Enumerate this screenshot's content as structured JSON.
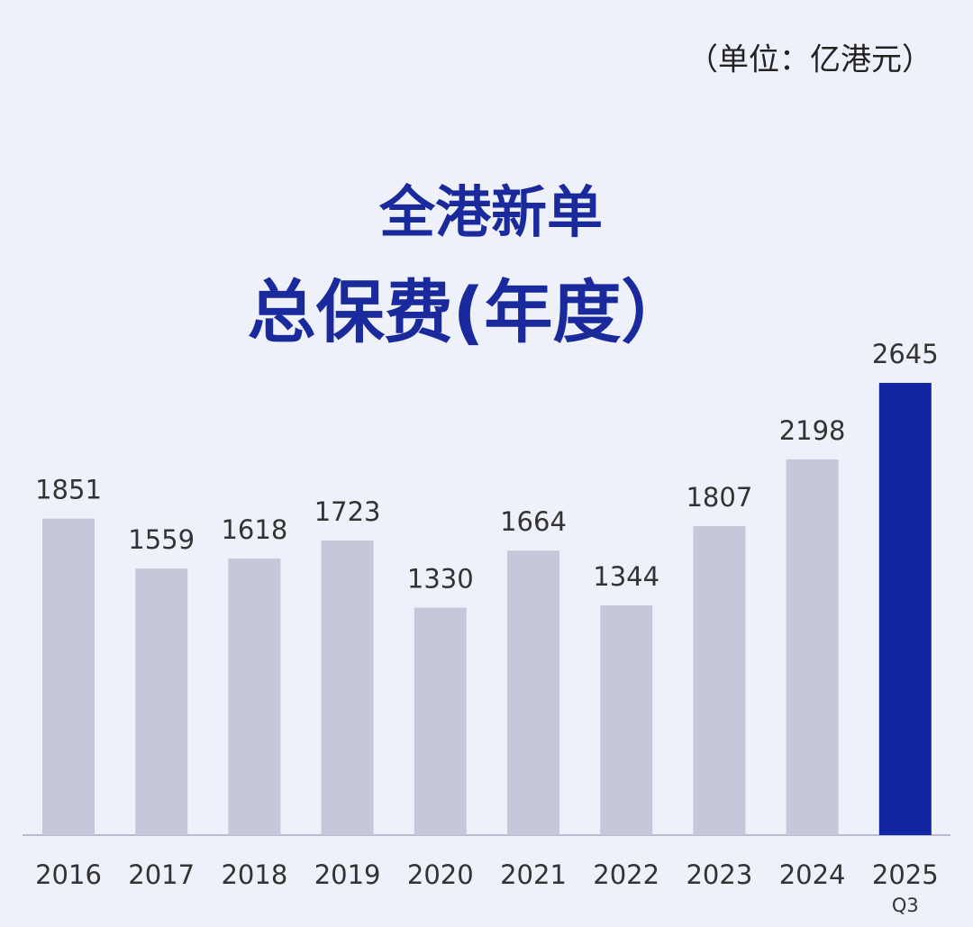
{
  "chart_data": {
    "type": "bar",
    "unit": "（单位：亿港元）",
    "title": "全港新单",
    "subtitle": "总保费(年度）",
    "categories": [
      "2016",
      "2017",
      "2018",
      "2019",
      "2020",
      "2021",
      "2022",
      "2023",
      "2024",
      "2025"
    ],
    "category_notes": [
      null,
      null,
      null,
      null,
      null,
      null,
      null,
      null,
      null,
      "Q3"
    ],
    "values": [
      1851,
      1559,
      1618,
      1723,
      1330,
      1664,
      1344,
      1807,
      2198,
      2645
    ],
    "colors": [
      "#c6c7da",
      "#c6c7da",
      "#c6c7da",
      "#c6c7da",
      "#c6c7da",
      "#c6c7da",
      "#c6c7da",
      "#c6c7da",
      "#c6c7da",
      "#1226a4"
    ]
  }
}
